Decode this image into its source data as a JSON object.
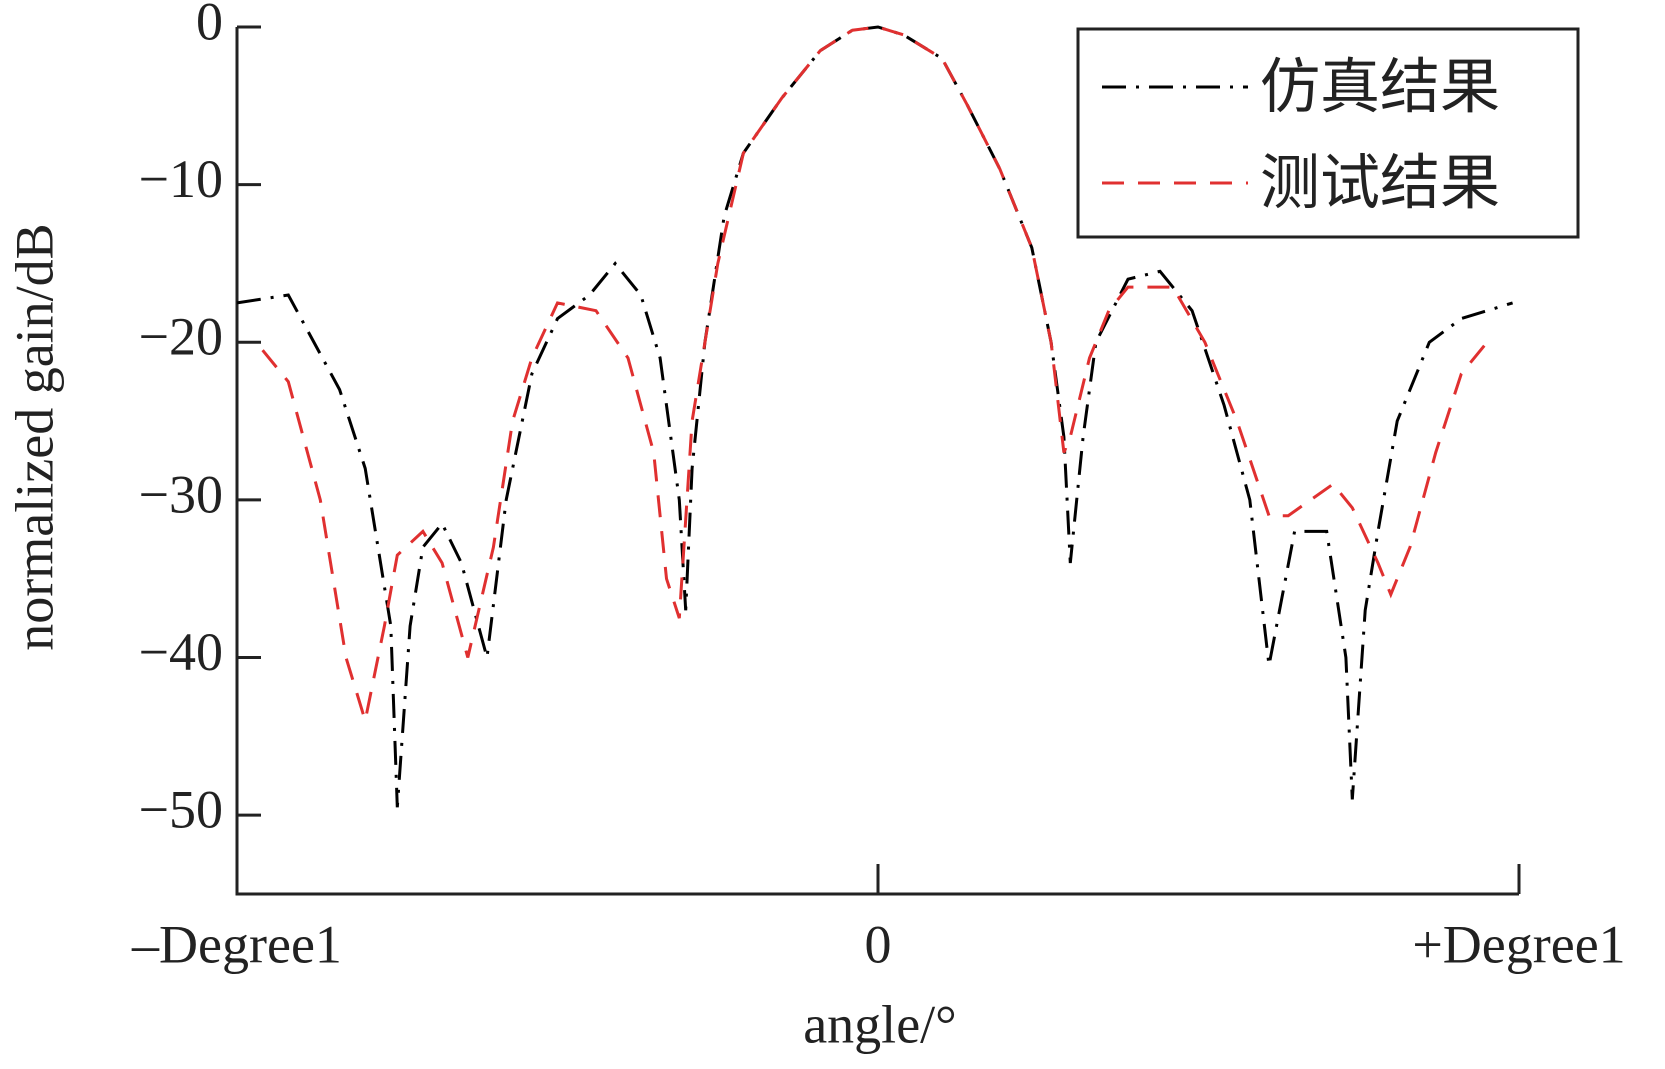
{
  "chart_data": {
    "type": "line",
    "xlabel": "angle/°",
    "ylabel": "normalized gain/dB",
    "xlim": [
      -1,
      1
    ],
    "xticks": [
      {
        "value": -1,
        "label": "–Degree1"
      },
      0,
      {
        "value": 1,
        "label": "+Degree1"
      }
    ],
    "ylim": [
      -55,
      0
    ],
    "yticks": [
      0,
      {
        "value": -10,
        "label": "−10"
      },
      {
        "value": -20,
        "label": "−20"
      },
      {
        "value": -30,
        "label": "−30"
      },
      {
        "value": -40,
        "label": "−40"
      },
      {
        "value": -50,
        "label": "−50"
      }
    ],
    "legend": "upper right",
    "series": [
      {
        "name": "仿真结果",
        "color": "#000000",
        "dash": "dashdot",
        "x": [
          -1.0,
          -0.92,
          -0.84,
          -0.8,
          -0.76,
          -0.75,
          -0.73,
          -0.71,
          -0.68,
          -0.65,
          -0.61,
          -0.58,
          -0.54,
          -0.5,
          -0.45,
          -0.41,
          -0.37,
          -0.34,
          -0.31,
          -0.3,
          -0.29,
          -0.27,
          -0.24,
          -0.21,
          -0.15,
          -0.09,
          -0.04,
          0,
          0.04,
          0.1,
          0.14,
          0.19,
          0.24,
          0.27,
          0.29,
          0.3,
          0.32,
          0.34,
          0.39,
          0.44,
          0.49,
          0.54,
          0.58,
          0.61,
          0.65,
          0.7,
          0.73,
          0.74,
          0.76,
          0.78,
          0.81,
          0.86,
          0.91,
          0.99
        ],
        "values": [
          -17.5,
          -17,
          -23,
          -28,
          -38,
          -49.5,
          -38,
          -33,
          -31.5,
          -34,
          -40,
          -30,
          -22,
          -18.5,
          -17,
          -15,
          -17,
          -21,
          -30,
          -37,
          -28,
          -20,
          -12,
          -8,
          -4.5,
          -1.5,
          -0.2,
          0,
          -0.5,
          -2,
          -5,
          -9,
          -14,
          -20,
          -26,
          -34,
          -26,
          -20,
          -16,
          -15.5,
          -18,
          -24,
          -30,
          -40.5,
          -32,
          -32,
          -40,
          -49,
          -37,
          -32,
          -25,
          -20,
          -18.5,
          -17.5
        ]
      },
      {
        "name": "测试结果",
        "color": "#e03030",
        "dash": "dashed",
        "x": [
          -0.96,
          -0.92,
          -0.87,
          -0.83,
          -0.8,
          -0.77,
          -0.75,
          -0.71,
          -0.68,
          -0.64,
          -0.6,
          -0.57,
          -0.54,
          -0.5,
          -0.44,
          -0.39,
          -0.35,
          -0.33,
          -0.31,
          -0.29,
          -0.25,
          -0.21,
          -0.15,
          -0.09,
          -0.04,
          0,
          0.04,
          0.1,
          0.14,
          0.19,
          0.24,
          0.27,
          0.29,
          0.3,
          0.33,
          0.36,
          0.39,
          0.46,
          0.51,
          0.56,
          0.61,
          0.64,
          0.71,
          0.74,
          0.78,
          0.8,
          0.83,
          0.87,
          0.91,
          0.95
        ],
        "values": [
          -20.5,
          -22.5,
          -30,
          -40,
          -44,
          -38,
          -33.5,
          -32,
          -34,
          -40,
          -33,
          -25,
          -21,
          -17.5,
          -18,
          -21,
          -27,
          -35,
          -37.5,
          -25,
          -15,
          -8,
          -4.5,
          -1.5,
          -0.2,
          0,
          -0.5,
          -2,
          -5,
          -9,
          -14,
          -20,
          -27,
          -26,
          -21,
          -18,
          -16.5,
          -16.5,
          -20,
          -25,
          -31,
          -31,
          -29,
          -30.5,
          -34,
          -36,
          -33,
          -27,
          -22,
          -20
        ]
      }
    ]
  }
}
